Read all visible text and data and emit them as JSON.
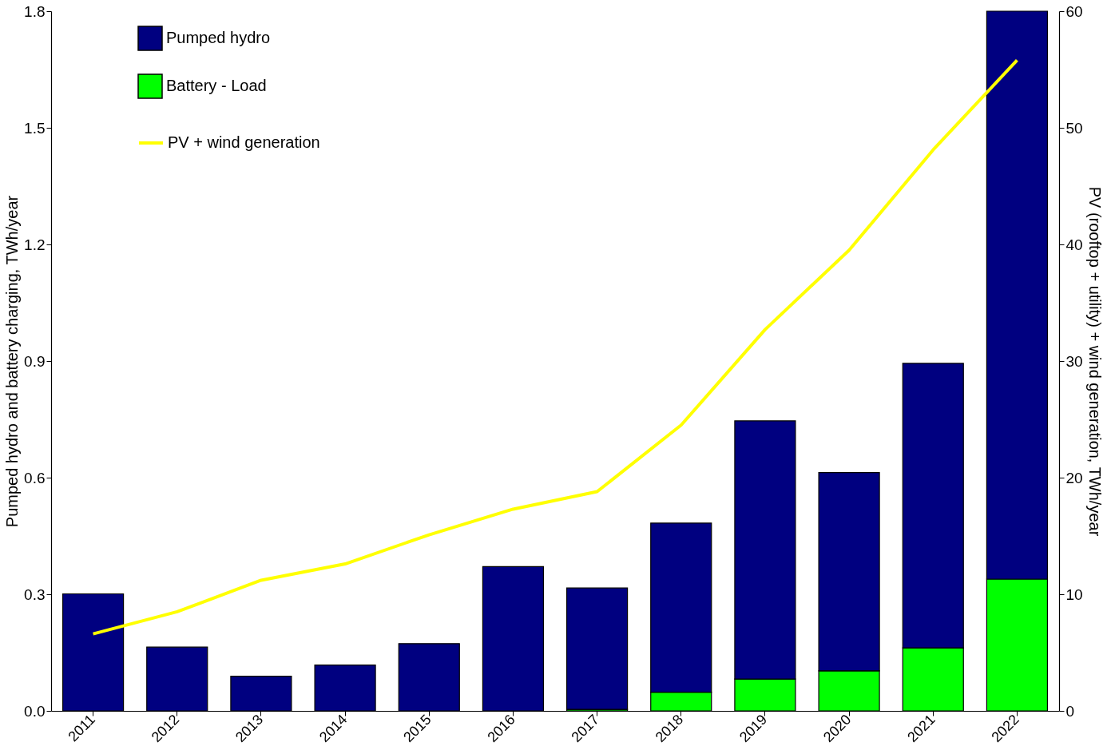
{
  "chart_data": {
    "type": "bar",
    "stacked": true,
    "grid": false,
    "legend": "top left",
    "categories": [
      "2011",
      "2012",
      "2013",
      "2014",
      "2015",
      "2016",
      "2017",
      "2018",
      "2019",
      "2020",
      "2021",
      "2022"
    ],
    "ylabel": "Pumped hydro and battery charging, TWh/year",
    "y2label": "PV (rooftop + utility) + wind generation, TWh/year",
    "ylim": [
      0,
      1.8
    ],
    "yticks": [
      {
        "value": 0,
        "label": "0.0"
      },
      {
        "value": 0.3,
        "label": "0.3"
      },
      {
        "value": 0.6,
        "label": "0.6"
      },
      {
        "value": 0.9,
        "label": "0.9"
      },
      {
        "value": 1.2,
        "label": "1.2"
      },
      {
        "value": 1.5,
        "label": "1.5"
      },
      {
        "value": 1.8,
        "label": "1.8"
      }
    ],
    "y2lim": [
      0,
      60
    ],
    "y2ticks": [
      0,
      10,
      20,
      30,
      40,
      50,
      60
    ],
    "series": [
      {
        "name": "Battery - Load",
        "color": "#00ff00",
        "values": [
          null,
          null,
          null,
          null,
          null,
          null,
          0.004,
          0.048,
          0.082,
          0.103,
          0.162,
          0.339
        ]
      },
      {
        "name": "Pumped hydro",
        "color": "#000080",
        "values": [
          0.301,
          0.164,
          0.089,
          0.118,
          0.173,
          0.371,
          0.312,
          0.435,
          0.664,
          0.51,
          0.732,
          1.461
        ]
      },
      {
        "name": "PV + wind generation",
        "color": "#ffff00",
        "type": "line",
        "axis": "y2",
        "values": [
          6.6,
          8.5,
          11.2,
          12.6,
          15.1,
          17.3,
          18.8,
          24.5,
          32.7,
          39.5,
          48.1,
          55.8
        ]
      }
    ]
  }
}
